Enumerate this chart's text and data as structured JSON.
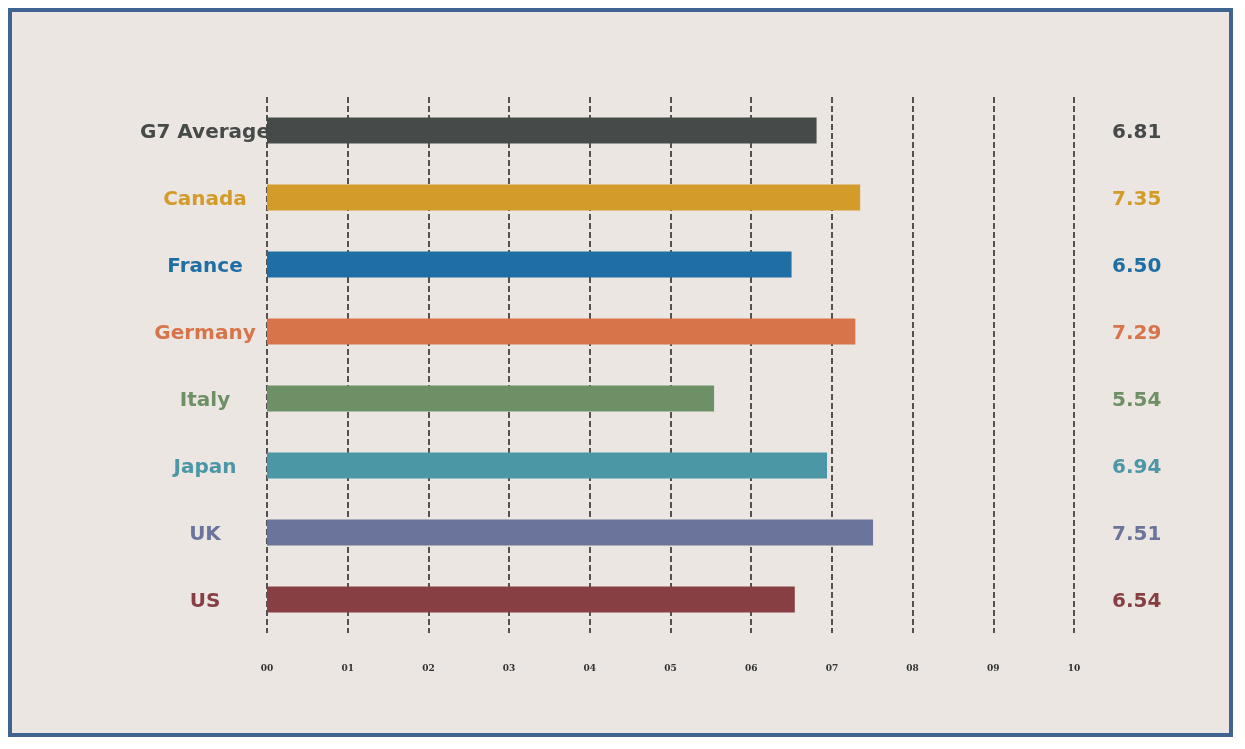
{
  "chart_data": {
    "type": "bar",
    "orientation": "horizontal",
    "categories": [
      "G7 Average",
      "Canada",
      "France",
      "Germany",
      "Italy",
      "Japan",
      "UK",
      "US"
    ],
    "values": [
      6.81,
      7.35,
      6.5,
      7.29,
      5.54,
      6.94,
      7.51,
      6.54
    ],
    "colors": [
      "#464a48",
      "#d39b2a",
      "#1f6fa5",
      "#d7744a",
      "#6e9066",
      "#4b97a6",
      "#6b759c",
      "#873f43"
    ],
    "value_labels": [
      "6.81",
      "7.35",
      "6.50",
      "7.29",
      "5.54",
      "6.94",
      "7.51",
      "6.54"
    ],
    "xlim": [
      0,
      10
    ],
    "xticks": [
      {
        "value": 0,
        "label": "00"
      },
      {
        "value": 1,
        "label": "01"
      },
      {
        "value": 2,
        "label": "02"
      },
      {
        "value": 3,
        "label": "03"
      },
      {
        "value": 4,
        "label": "04"
      },
      {
        "value": 5,
        "label": "05"
      },
      {
        "value": 6,
        "label": "06"
      },
      {
        "value": 7,
        "label": "07"
      },
      {
        "value": 8,
        "label": "08"
      },
      {
        "value": 9,
        "label": "09"
      },
      {
        "value": 10,
        "label": "10"
      }
    ],
    "grid": "x"
  }
}
